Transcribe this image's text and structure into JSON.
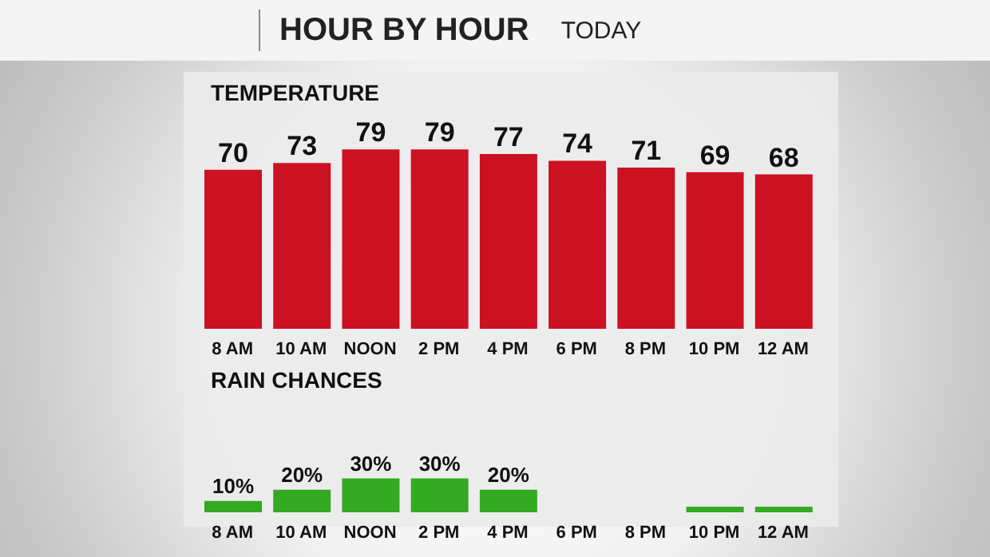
{
  "chart_data": [
    {
      "type": "bar",
      "title": "TEMPERATURE",
      "annotations": [
        "HOUR BY HOUR",
        "TODAY"
      ],
      "categories": [
        "8 AM",
        "10 AM",
        "NOON",
        "2 PM",
        "4 PM",
        "6 PM",
        "8 PM",
        "10 PM",
        "12 AM"
      ],
      "values": [
        70,
        73,
        79,
        79,
        77,
        74,
        71,
        69,
        68
      ],
      "color": "#cc1122",
      "data_labels": true,
      "tick_labels": "x",
      "grid": false,
      "legend": false
    },
    {
      "type": "bar",
      "title": "RAIN CHANCES",
      "categories": [
        "8 AM",
        "10 AM",
        "NOON",
        "2 PM",
        "4 PM",
        "6 PM",
        "8 PM",
        "10 PM",
        "12 AM"
      ],
      "values": [
        10,
        20,
        30,
        30,
        20,
        null,
        null,
        5,
        5
      ],
      "value_labels": [
        "10%",
        "20%",
        "30%",
        "30%",
        "20%",
        null,
        null,
        null,
        null
      ],
      "color": "#33aa22",
      "tick_labels": "x",
      "grid": false,
      "legend": false
    }
  ]
}
